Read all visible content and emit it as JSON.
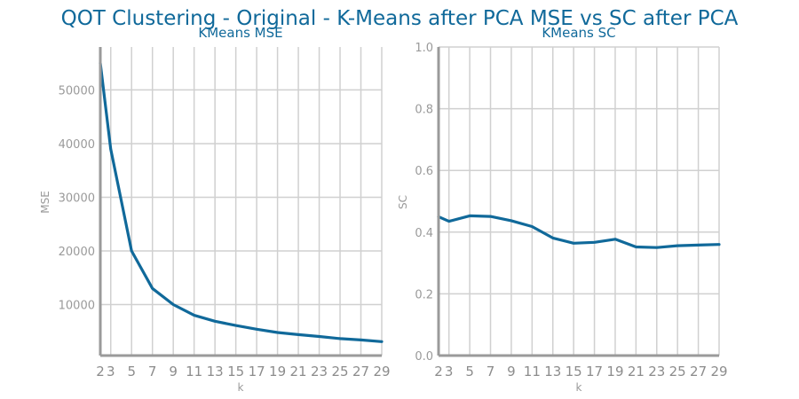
{
  "figure_title": "QOT Clustering - Original - K-Means after PCA MSE vs SC after PCA",
  "colors": {
    "title": "#10699a",
    "series": "#10699a",
    "grid": "#d0d0d0",
    "axis": "#9a9a9a"
  },
  "chart_data": [
    {
      "type": "line",
      "title": "KMeans MSE",
      "xlabel": "k",
      "ylabel": "MSE",
      "xlim": [
        2,
        29
      ],
      "ylim": [
        500,
        58000
      ],
      "xticks": [
        2,
        3,
        5,
        7,
        9,
        11,
        13,
        15,
        17,
        19,
        21,
        23,
        25,
        27,
        29
      ],
      "yticks": [
        10000,
        20000,
        30000,
        40000,
        50000
      ],
      "grid": true,
      "series": [
        {
          "x": [
            2,
            3,
            5,
            7,
            9,
            11,
            13,
            15,
            17,
            19,
            21,
            23,
            25,
            27,
            29
          ],
          "values": [
            55000,
            39000,
            20000,
            13000,
            10000,
            8000,
            6900,
            6100,
            5400,
            4800,
            4400,
            4050,
            3650,
            3400,
            3100
          ]
        }
      ]
    },
    {
      "type": "line",
      "title": "KMeans SC",
      "xlabel": "k",
      "ylabel": "SC",
      "xlim": [
        2,
        29
      ],
      "ylim": [
        0,
        1
      ],
      "xticks": [
        2,
        3,
        5,
        7,
        9,
        11,
        13,
        15,
        17,
        19,
        21,
        23,
        25,
        27,
        29
      ],
      "yticks": [
        0.0,
        0.2,
        0.4,
        0.6,
        0.8,
        1.0
      ],
      "grid": true,
      "series": [
        {
          "x": [
            2,
            3,
            5,
            7,
            9,
            11,
            13,
            15,
            17,
            19,
            21,
            23,
            25,
            27,
            29
          ],
          "values": [
            0.45,
            0.435,
            0.453,
            0.451,
            0.437,
            0.418,
            0.381,
            0.364,
            0.367,
            0.377,
            0.352,
            0.35,
            0.356,
            0.358,
            0.36
          ]
        }
      ]
    }
  ]
}
